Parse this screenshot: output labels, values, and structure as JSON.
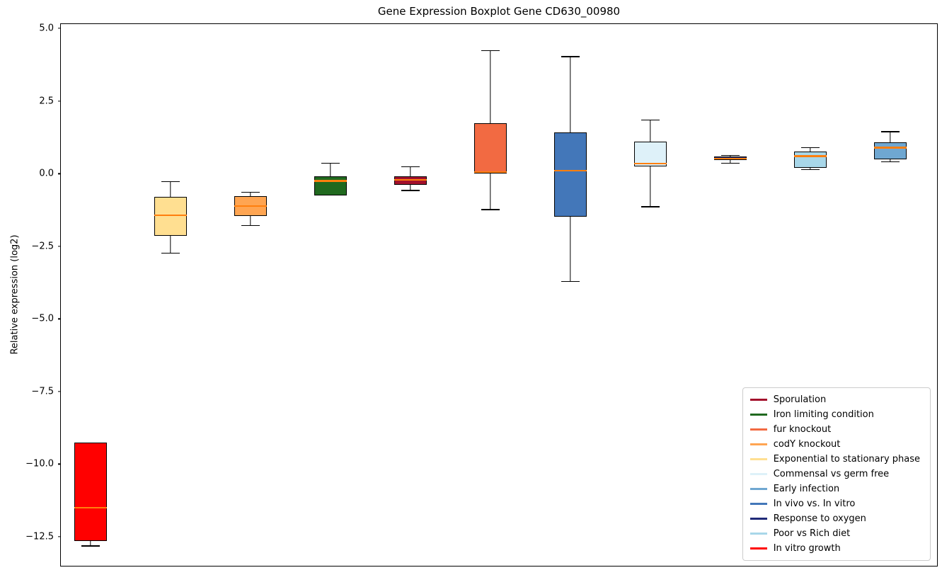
{
  "chart_data": {
    "type": "boxplot",
    "title": "Gene Expression Boxplot Gene CD630_00980",
    "xlabel": "",
    "ylabel": "Relative expression (log2)",
    "ylim": [
      -13.5,
      5.15
    ],
    "yticks": [
      5.0,
      2.5,
      0.0,
      -2.5,
      -5.0,
      -7.5,
      -10.0,
      -12.5
    ],
    "grid": false,
    "legend_position": "lower right",
    "median_color": "#ff7f0e",
    "series": [
      {
        "name": "In vitro growth",
        "color": "#ff0000",
        "whisker_low": -12.8,
        "q1": -12.65,
        "median": -11.5,
        "q3": -9.25,
        "whisker_high": -9.25
      },
      {
        "name": "Exponential to stationary phase",
        "color": "#ffdf91",
        "whisker_low": -2.72,
        "q1": -2.15,
        "median": -1.43,
        "q3": -0.8,
        "whisker_high": -0.25
      },
      {
        "name": "codY knockout",
        "color": "#ffa552",
        "whisker_low": -1.77,
        "q1": -1.45,
        "median": -1.12,
        "q3": -0.78,
        "whisker_high": -0.63
      },
      {
        "name": "Iron limiting condition",
        "color": "#20691f",
        "whisker_low": -0.75,
        "q1": -0.75,
        "median": -0.25,
        "q3": -0.08,
        "whisker_high": 0.37
      },
      {
        "name": "Sporulation",
        "color": "#a3112c",
        "whisker_low": -0.56,
        "q1": -0.38,
        "median": -0.22,
        "q3": -0.1,
        "whisker_high": 0.26
      },
      {
        "name": "fur knockout",
        "color": "#f26a42",
        "whisker_low": -1.22,
        "q1": 0.0,
        "median": 0.06,
        "q3": 1.73,
        "whisker_high": 4.25
      },
      {
        "name": "In vivo vs. In vitro",
        "color": "#4377b9",
        "whisker_low": -3.7,
        "q1": -1.47,
        "median": 0.1,
        "q3": 1.41,
        "whisker_high": 4.05
      },
      {
        "name": "Commensal vs germ free",
        "color": "#def1f9",
        "whisker_low": -1.12,
        "q1": 0.24,
        "median": 0.35,
        "q3": 1.1,
        "whisker_high": 1.86
      },
      {
        "name": "Response to oxygen",
        "color": "#202a78",
        "whisker_low": 0.38,
        "q1": 0.46,
        "median": 0.52,
        "q3": 0.58,
        "whisker_high": 0.65
      },
      {
        "name": "Poor vs Rich diet",
        "color": "#a8d7e9",
        "whisker_low": 0.15,
        "q1": 0.2,
        "median": 0.6,
        "q3": 0.76,
        "whisker_high": 0.92
      },
      {
        "name": "Early infection",
        "color": "#6fa7d1",
        "whisker_low": 0.42,
        "q1": 0.49,
        "median": 0.9,
        "q3": 1.07,
        "whisker_high": 1.46
      }
    ],
    "legend": [
      {
        "label": "Sporulation",
        "color": "#a3112c"
      },
      {
        "label": "Iron limiting condition",
        "color": "#20691f"
      },
      {
        "label": "fur knockout",
        "color": "#f26a42"
      },
      {
        "label": "codY knockout",
        "color": "#ffa552"
      },
      {
        "label": "Exponential to stationary phase",
        "color": "#ffdf91"
      },
      {
        "label": "Commensal vs germ free",
        "color": "#def1f9"
      },
      {
        "label": "Early infection",
        "color": "#6fa7d1"
      },
      {
        "label": "In vivo vs. In vitro",
        "color": "#4377b9"
      },
      {
        "label": "Response to oxygen",
        "color": "#202a78"
      },
      {
        "label": "Poor vs Rich diet",
        "color": "#a8d7e9"
      },
      {
        "label": "In vitro growth",
        "color": "#ff0000"
      }
    ]
  }
}
